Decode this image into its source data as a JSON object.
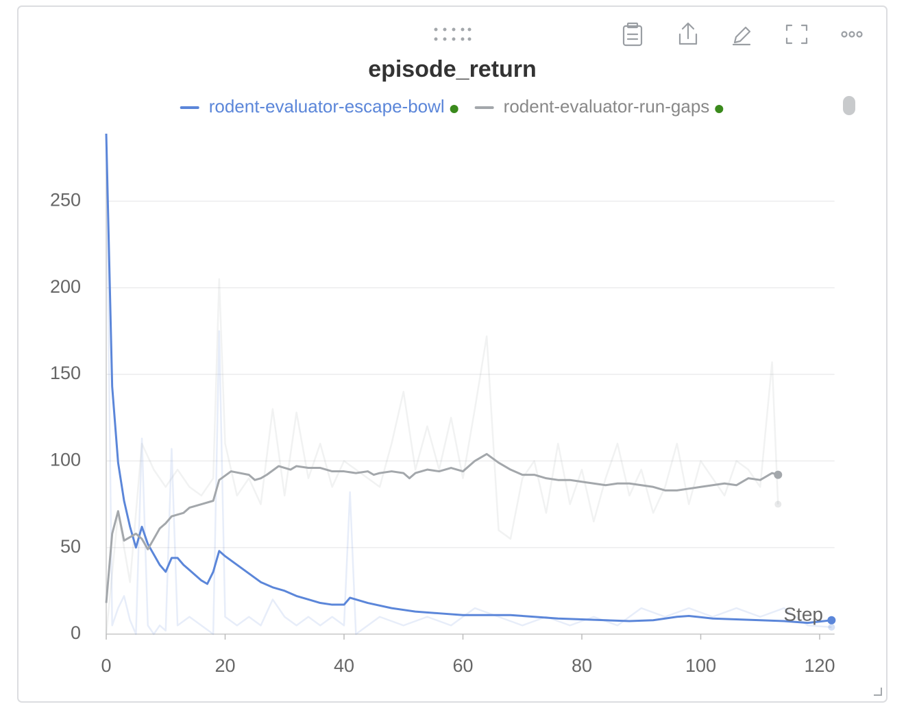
{
  "chart_data": {
    "type": "line",
    "title": "episode_return",
    "x_label": "Step",
    "xlim": [
      0,
      122.5
    ],
    "ylim": [
      0,
      289
    ],
    "xticks": [
      0,
      20,
      40,
      60,
      80,
      100,
      120
    ],
    "yticks": [
      0,
      50,
      100,
      150,
      200,
      250
    ],
    "grid": true,
    "status_color": "#3a8a1c",
    "series": [
      {
        "name": "rodent-evaluator-escape-bowl",
        "color": "#5b86d9",
        "x": [
          0,
          1,
          2,
          3,
          4,
          5,
          6,
          7,
          8,
          9,
          10,
          11,
          12,
          13,
          14,
          15,
          16,
          17,
          18,
          19,
          20,
          22,
          24,
          26,
          28,
          30,
          32,
          34,
          36,
          38,
          40,
          41,
          44,
          48,
          52,
          56,
          60,
          64,
          68,
          72,
          76,
          80,
          84,
          88,
          92,
          96,
          98,
          102,
          106,
          110,
          114,
          118,
          122
        ],
        "values": [
          289,
          143,
          99,
          77,
          62,
          50,
          62,
          52,
          46,
          40,
          36,
          44,
          44,
          40,
          37,
          34,
          31,
          29,
          36,
          48,
          45,
          40,
          35,
          30,
          27,
          25,
          22,
          20,
          18,
          17,
          17,
          21,
          18,
          15,
          13,
          12,
          11,
          11,
          11,
          10,
          9,
          8.5,
          8,
          7.5,
          8,
          10,
          10.5,
          9,
          8.5,
          8,
          7.5,
          6.5,
          8
        ],
        "raw": {
          "x": [
            0,
            1,
            2,
            3,
            4,
            5,
            6,
            7,
            8,
            9,
            10,
            11,
            12,
            14,
            16,
            18,
            19,
            20,
            22,
            24,
            26,
            28,
            30,
            32,
            34,
            36,
            38,
            40,
            41,
            42,
            46,
            50,
            54,
            58,
            62,
            66,
            70,
            74,
            78,
            82,
            86,
            90,
            94,
            98,
            102,
            106,
            110,
            114,
            118,
            122
          ],
          "values": [
            289,
            5,
            15,
            22,
            8,
            0,
            113,
            5,
            0,
            5,
            2,
            107,
            5,
            10,
            5,
            0,
            175,
            10,
            5,
            10,
            5,
            20,
            10,
            5,
            10,
            5,
            10,
            5,
            82,
            0,
            10,
            5,
            10,
            5,
            15,
            10,
            5,
            10,
            5,
            10,
            5,
            15,
            10,
            15,
            10,
            15,
            10,
            15,
            5,
            4
          ]
        }
      },
      {
        "name": "rodent-evaluator-run-gaps",
        "color": "#a3a7ab",
        "x": [
          0,
          1,
          2,
          3,
          4,
          5,
          6,
          7,
          8,
          9,
          10,
          11,
          12,
          13,
          14,
          16,
          18,
          19,
          21,
          24,
          25,
          26,
          27,
          29,
          31,
          32,
          34,
          36,
          38,
          40,
          42,
          44,
          45,
          46,
          48,
          50,
          51,
          52,
          54,
          56,
          58,
          60,
          62,
          64,
          66,
          68,
          70,
          72,
          74,
          76,
          78,
          80,
          82,
          84,
          86,
          88,
          90,
          92,
          94,
          96,
          98,
          100,
          102,
          104,
          106,
          108,
          110,
          112,
          113
        ],
        "values": [
          18,
          58,
          71,
          54,
          56,
          58,
          55,
          49,
          55,
          61,
          64,
          68,
          69,
          70,
          73,
          75,
          77,
          89,
          94,
          92,
          89,
          90,
          92,
          97,
          95,
          97,
          96,
          96,
          94,
          94,
          93,
          94,
          92,
          93,
          94,
          93,
          90,
          93,
          95,
          94,
          96,
          94,
          100,
          104,
          99,
          95,
          92,
          92,
          90,
          89,
          89,
          88,
          87,
          86,
          87,
          87,
          86,
          85,
          83,
          83,
          84,
          85,
          86,
          87,
          86,
          90,
          89,
          93,
          92
        ],
        "raw": {
          "x": [
            0,
            2,
            4,
            6,
            8,
            10,
            12,
            14,
            16,
            18,
            19,
            20,
            22,
            24,
            26,
            28,
            30,
            32,
            34,
            36,
            38,
            40,
            42,
            44,
            46,
            48,
            50,
            52,
            54,
            56,
            58,
            60,
            62,
            64,
            66,
            68,
            70,
            72,
            74,
            76,
            78,
            80,
            82,
            84,
            86,
            88,
            90,
            92,
            94,
            96,
            98,
            100,
            102,
            104,
            106,
            108,
            110,
            112,
            113
          ],
          "values": [
            0,
            70,
            30,
            110,
            95,
            85,
            95,
            85,
            80,
            90,
            205,
            110,
            80,
            90,
            75,
            130,
            80,
            128,
            90,
            110,
            85,
            100,
            95,
            90,
            85,
            110,
            140,
            95,
            120,
            95,
            125,
            90,
            130,
            172,
            60,
            55,
            90,
            100,
            70,
            110,
            75,
            95,
            65,
            90,
            110,
            80,
            95,
            70,
            85,
            110,
            75,
            100,
            90,
            80,
            100,
            95,
            85,
            157,
            75
          ]
        }
      }
    ]
  }
}
